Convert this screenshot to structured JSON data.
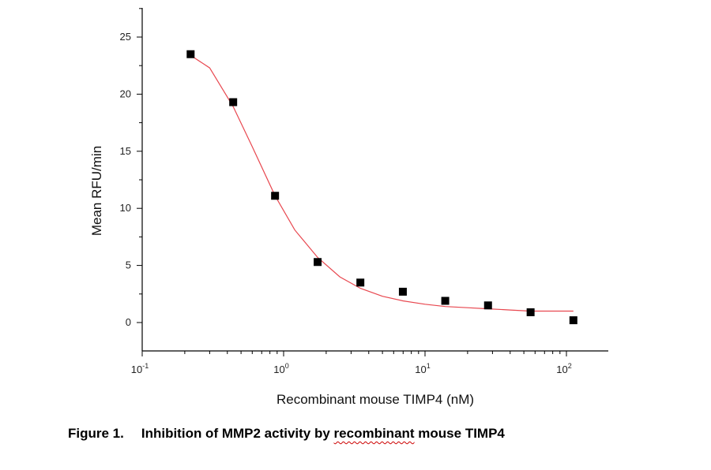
{
  "caption": {
    "number": "Figure 1.",
    "text_pre": "Inhibition of MMP2 activity by ",
    "text_underlined": "recombinant",
    "text_post": " mouse TIMP4"
  },
  "chart_data": {
    "type": "scatter",
    "title": "",
    "xlabel": "Recombinant mouse TIMP4 (nM)",
    "ylabel": "Mean RFU/min",
    "x_scale": "log",
    "xlim": [
      0.1,
      200
    ],
    "ylim": [
      -2.5,
      27
    ],
    "x_ticks": [
      {
        "value": 0.1,
        "base": "10",
        "exp": "-1"
      },
      {
        "value": 1,
        "base": "10",
        "exp": "0"
      },
      {
        "value": 10,
        "base": "10",
        "exp": "1"
      },
      {
        "value": 100,
        "base": "10",
        "exp": "2"
      }
    ],
    "y_ticks": [
      0,
      5,
      10,
      15,
      20,
      25
    ],
    "grid": false,
    "colors": {
      "points": "#000000",
      "fit": "#e8474f"
    },
    "series": [
      {
        "type": "scatter",
        "x": [
          0.22,
          0.44,
          0.87,
          1.74,
          3.49,
          6.97,
          13.9,
          27.9,
          55.8,
          112
        ],
        "y": [
          23.5,
          19.3,
          11.1,
          5.3,
          3.5,
          2.7,
          1.9,
          1.5,
          0.9,
          0.2
        ]
      },
      {
        "type": "fit",
        "x": [
          0.22,
          0.3,
          0.44,
          0.6,
          0.87,
          1.2,
          1.74,
          2.5,
          3.49,
          5,
          6.97,
          10,
          13.9,
          20,
          27.9,
          40,
          55.8,
          80,
          112
        ],
        "y": [
          23.4,
          22.3,
          18.9,
          15.4,
          11.1,
          8.1,
          5.7,
          4.0,
          3.0,
          2.3,
          1.9,
          1.6,
          1.4,
          1.3,
          1.2,
          1.1,
          1.0,
          1.0,
          1.0
        ]
      }
    ]
  }
}
